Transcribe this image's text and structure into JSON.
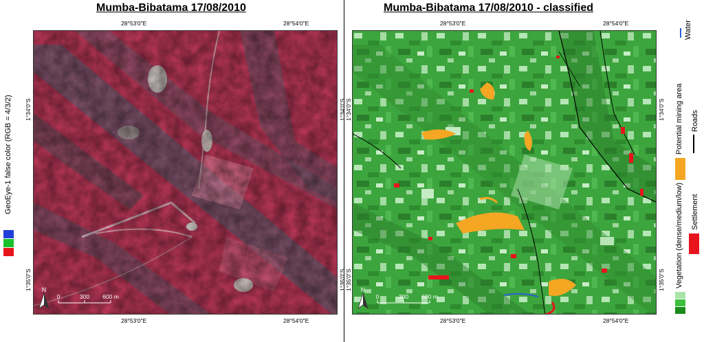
{
  "left_panel": {
    "title": "Mumba-Bibatama 17/08/2010",
    "coords": {
      "top_left": "28°53'0\"E",
      "top_right": "28°54'0\"E",
      "bottom_left": "28°53'0\"E",
      "bottom_right": "28°54'0\"E",
      "lat_upper": "1°34'0\"S",
      "lat_lower": "1°35'0\"S"
    },
    "side_label": "GeoEye-1 false color (RGB = 4/3/2)",
    "rgb_swatches": [
      "#1f3fd6",
      "#19c12b",
      "#e8141c"
    ],
    "north_label": "N",
    "scale": {
      "ticks": [
        "0",
        "300",
        "600 m"
      ]
    }
  },
  "right_panel": {
    "title": "Mumba-Bibatama 17/08/2010 - classified",
    "coords": {
      "top_left": "28°53'0\"E",
      "top_right": "28°54'0\"E",
      "bottom_left": "28°53'0\"E",
      "bottom_right": "28°54'0\"E",
      "lat_upper": "1°34'0\"S",
      "lat_lower": "1°35'0\"S"
    },
    "north_label": "N",
    "scale": {
      "ticks": [
        "0",
        "300",
        "600 m"
      ]
    }
  },
  "legend": {
    "water": {
      "label": "Water",
      "color": "#2b5fd9"
    },
    "roads": {
      "label": "Roads",
      "color": "#000000"
    },
    "mining": {
      "label": "Potential mining area",
      "color": "#f5a623"
    },
    "settlement": {
      "label": "Settlement",
      "color": "#e8141c"
    },
    "vegetation": {
      "label": "Vegetation (dense/medium/low)",
      "colors": [
        "#1a8c1a",
        "#3cbf3c",
        "#a9e3a9"
      ]
    }
  },
  "colors": {
    "false_color_base": "#c43a5c",
    "false_color_dark": "#5e5a6e",
    "veg_dense": "#2e8b2e",
    "veg_medium": "#45b045",
    "veg_low": "#b5e6b5"
  }
}
